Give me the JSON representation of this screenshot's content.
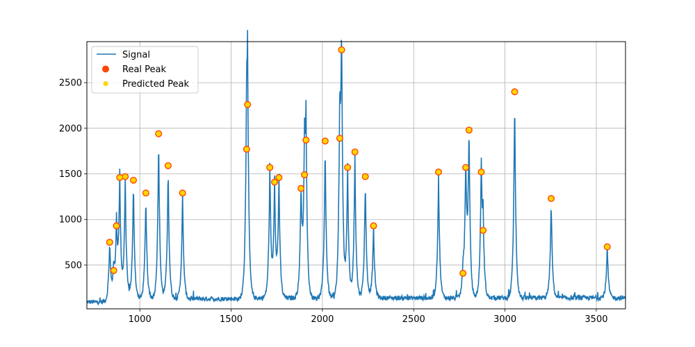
{
  "chart_data": {
    "type": "line",
    "title": "",
    "xlabel": "",
    "ylabel": "",
    "xlim": [
      710,
      3660
    ],
    "ylim": [
      20,
      2950
    ],
    "x_ticks": [
      1000,
      1500,
      2000,
      2500,
      3000,
      3500
    ],
    "y_ticks": [
      500,
      1000,
      1500,
      2000,
      2500
    ],
    "grid": true,
    "legend_position": "top-left",
    "colors": {
      "signal": "#1f77b4",
      "real_peak": "#ff4500",
      "predicted_peak": "#ffd700"
    },
    "signal": {
      "name": "Signal",
      "baseline": {
        "before": 95,
        "after": 105
      },
      "peaks": [
        [
          835,
          750
        ],
        [
          857,
          440
        ],
        [
          872,
          930
        ],
        [
          890,
          1460
        ],
        [
          920,
          1470
        ],
        [
          965,
          1430
        ],
        [
          1033,
          1290
        ],
        [
          1103,
          1940
        ],
        [
          1155,
          1590
        ],
        [
          1234,
          1290
        ],
        [
          1585,
          1770
        ],
        [
          1590,
          2260
        ],
        [
          1712,
          1570
        ],
        [
          1738,
          1410
        ],
        [
          1762,
          1460
        ],
        [
          1883,
          1340
        ],
        [
          1902,
          1490
        ],
        [
          1910,
          1870
        ],
        [
          2015,
          1860
        ],
        [
          2095,
          1890
        ],
        [
          2105,
          2860
        ],
        [
          2138,
          1570
        ],
        [
          2178,
          1740
        ],
        [
          2235,
          1470
        ],
        [
          2280,
          930
        ],
        [
          2636,
          1520
        ],
        [
          2770,
          410
        ],
        [
          2785,
          1570
        ],
        [
          2803,
          1980
        ],
        [
          2870,
          1520
        ],
        [
          2880,
          880
        ],
        [
          3053,
          2400
        ],
        [
          3253,
          1230
        ],
        [
          3560,
          700
        ]
      ]
    },
    "series": [
      {
        "name": "Real Peak",
        "x": [
          835,
          857,
          872,
          890,
          920,
          965,
          1033,
          1103,
          1155,
          1234,
          1585,
          1590,
          1712,
          1738,
          1762,
          1883,
          1902,
          1910,
          2015,
          2095,
          2105,
          2138,
          2178,
          2235,
          2280,
          2636,
          2770,
          2785,
          2803,
          2870,
          2880,
          3053,
          3253,
          3560
        ],
        "y": [
          750,
          440,
          930,
          1460,
          1470,
          1430,
          1290,
          1940,
          1590,
          1290,
          1770,
          2260,
          1570,
          1410,
          1460,
          1340,
          1490,
          1870,
          1860,
          1890,
          2860,
          1570,
          1740,
          1470,
          930,
          1520,
          410,
          1570,
          1980,
          1520,
          880,
          2400,
          1230,
          700
        ]
      },
      {
        "name": "Predicted Peak",
        "x": [
          835,
          857,
          872,
          890,
          920,
          965,
          1033,
          1103,
          1155,
          1234,
          1585,
          1590,
          1712,
          1738,
          1762,
          1883,
          1902,
          1910,
          2015,
          2095,
          2105,
          2138,
          2178,
          2235,
          2280,
          2636,
          2770,
          2785,
          2803,
          2870,
          2880,
          3053,
          3253,
          3560
        ],
        "y": [
          750,
          440,
          930,
          1460,
          1470,
          1430,
          1290,
          1940,
          1590,
          1290,
          1770,
          2260,
          1570,
          1410,
          1460,
          1340,
          1490,
          1870,
          1860,
          1890,
          2860,
          1570,
          1740,
          1470,
          930,
          1520,
          410,
          1570,
          1980,
          1520,
          880,
          2400,
          1230,
          700
        ]
      }
    ],
    "legend": [
      "Signal",
      "Real Peak",
      "Predicted Peak"
    ]
  }
}
